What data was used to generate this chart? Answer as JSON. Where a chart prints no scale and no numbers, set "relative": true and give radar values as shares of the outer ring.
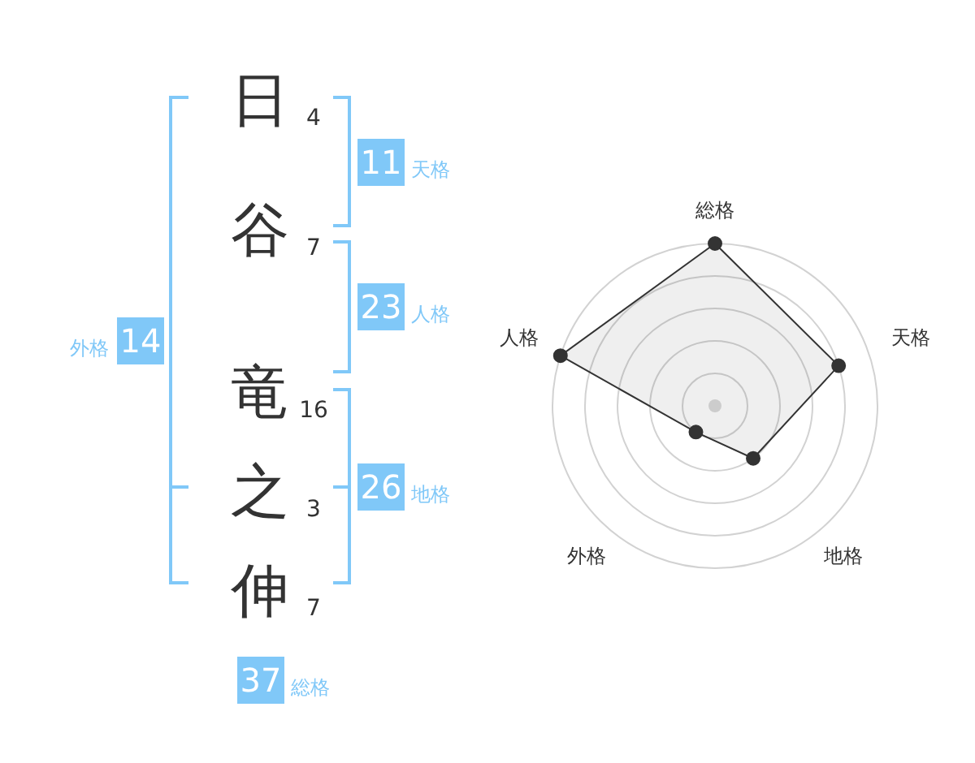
{
  "chart_data": [
    {
      "type": "other",
      "categories": [
        "日",
        "谷",
        "竜",
        "之",
        "伸"
      ],
      "values": [
        4,
        7,
        16,
        3,
        7
      ],
      "data_labels": true,
      "color": "#80c8f8",
      "annotations": [
        "11",
        "天格",
        "23",
        "人格",
        "26",
        "地格",
        "14",
        "外格",
        "37",
        "総格"
      ]
    },
    {
      "type": "radar",
      "categories": [
        "総格",
        "天格",
        "地格",
        "外格",
        "人格"
      ],
      "relative": true,
      "series": [
        {
          "color": "#333333",
          "values": [
            1,
            0.8,
            0.4,
            0.2,
            1
          ]
        }
      ],
      "grid": true,
      "marker": "circle"
    }
  ]
}
